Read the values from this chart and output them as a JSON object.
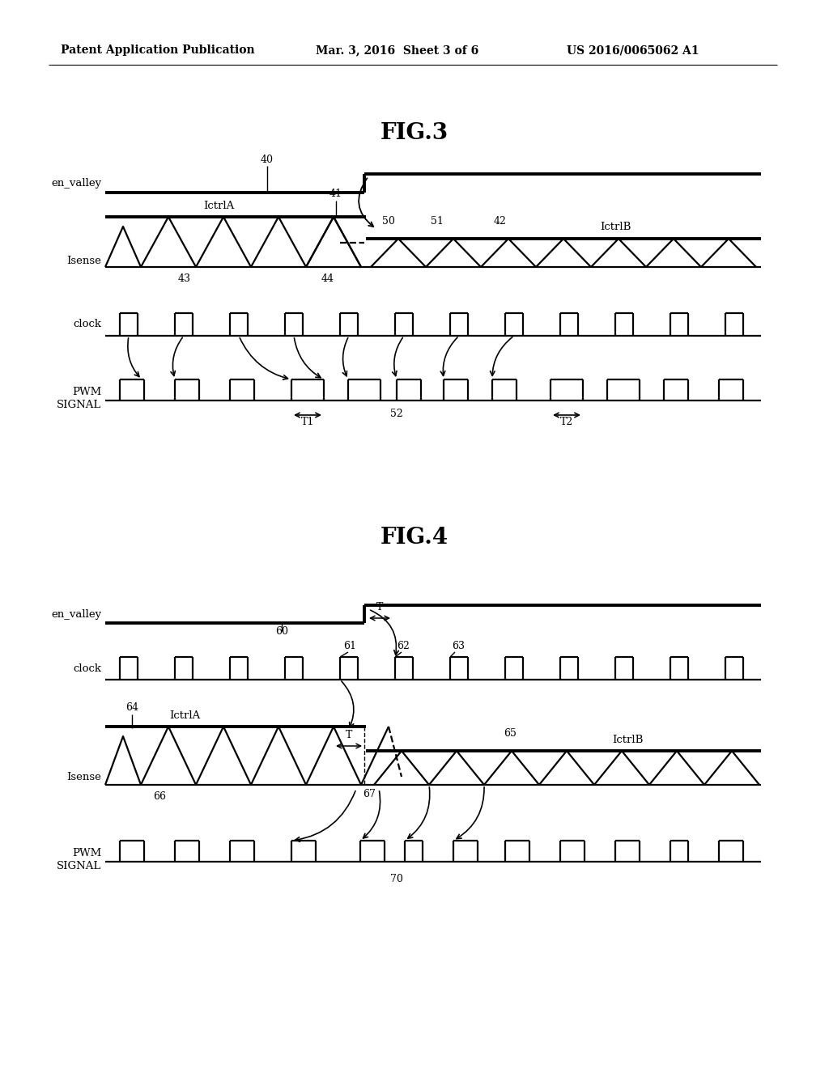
{
  "header_left": "Patent Application Publication",
  "header_center": "Mar. 3, 2016  Sheet 3 of 6",
  "header_right": "US 2016/0065062 A1",
  "fig3_title": "FIG.3",
  "fig4_title": "FIG.4",
  "bg_color": "#ffffff",
  "line_color": "#000000",
  "lw": 1.6,
  "lw_thick": 2.8
}
